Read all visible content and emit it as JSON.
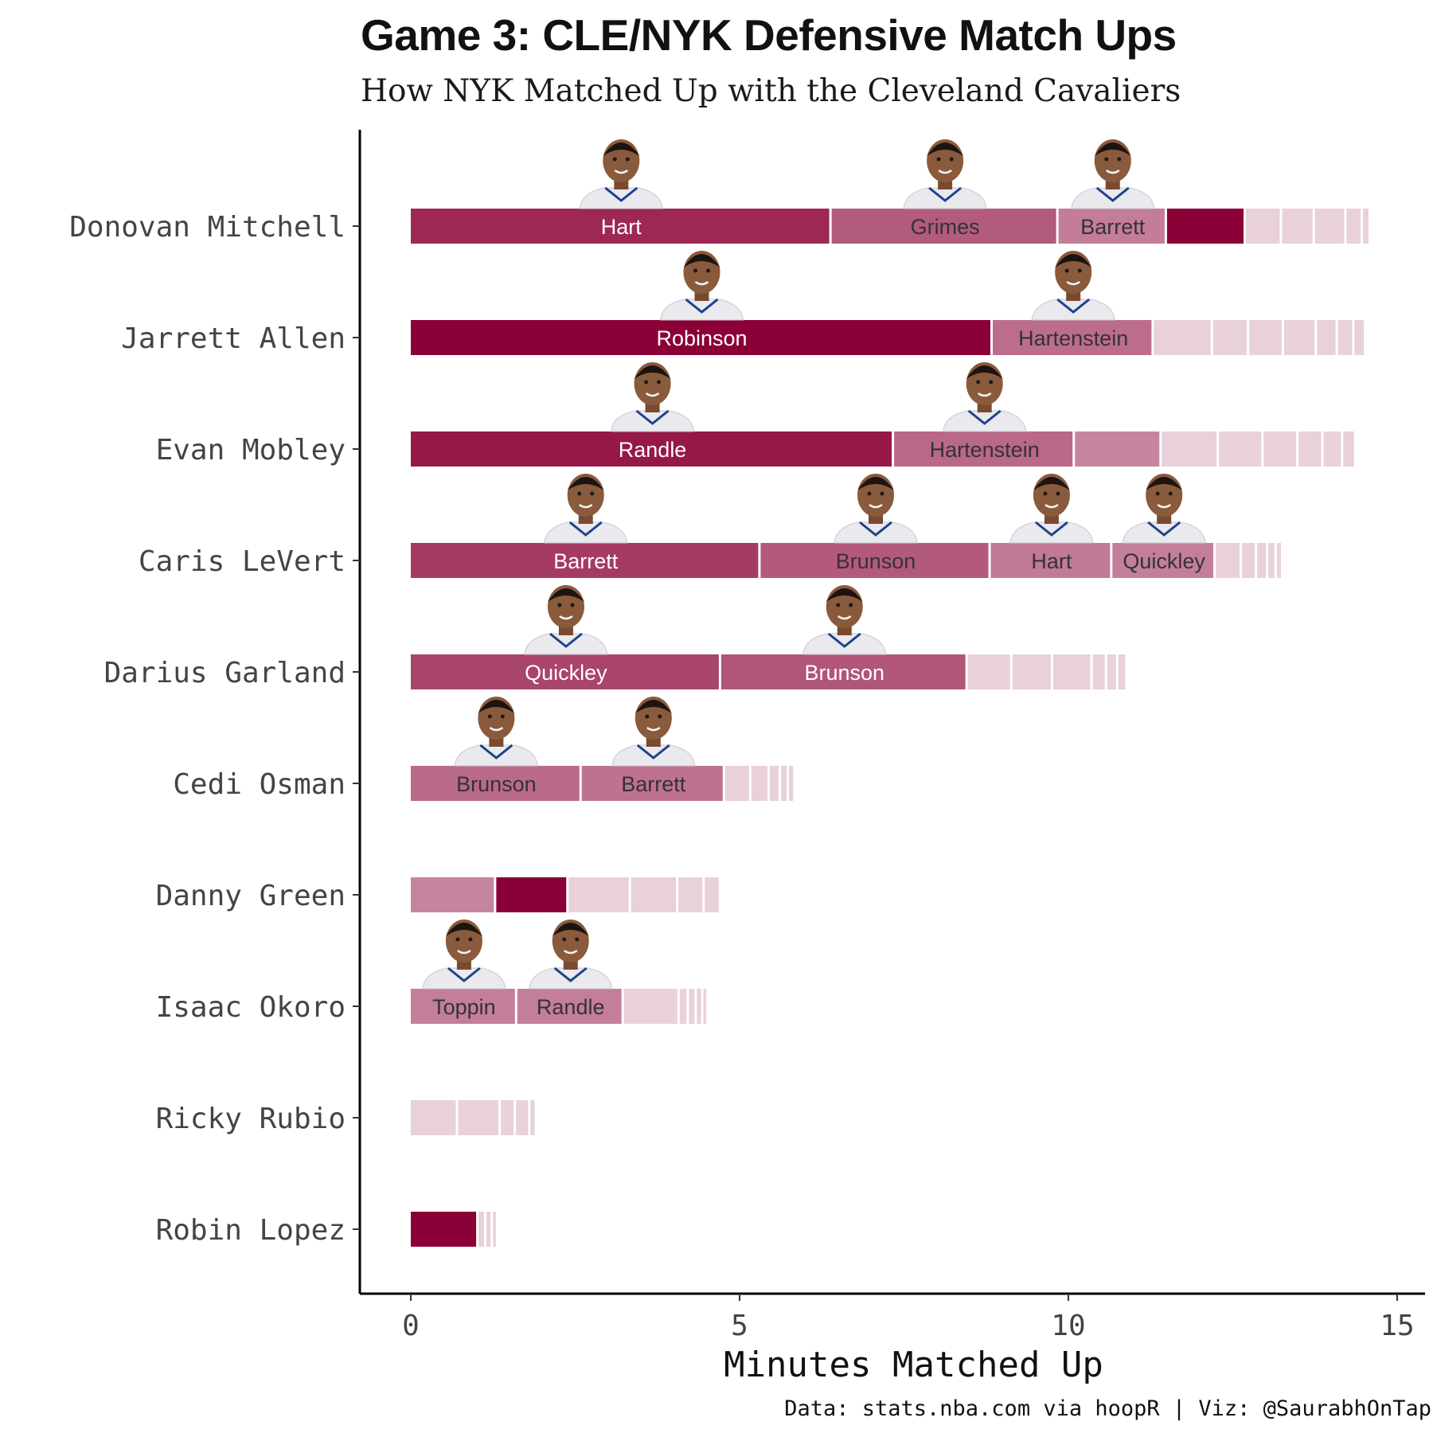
{
  "chart_data": {
    "type": "bar",
    "orientation": "horizontal",
    "stacked": true,
    "title": "Game 3: CLE/NYK Defensive Match Ups",
    "subtitle": "How NYK Matched Up with the Cleveland Cavaliers",
    "xlabel": "Minutes Matched Up",
    "ylabel": "",
    "xlim": [
      0,
      15
    ],
    "xticks": [
      0,
      5,
      10,
      15
    ],
    "caption": "Data: stats.nba.com via hoopR | Viz: @SaurabhOnTap",
    "colors": {
      "dark": "#8b0036",
      "light": "#e8d1da",
      "grid_gap": "#ffffff",
      "axis": "#000000"
    },
    "categories": [
      "Donovan Mitchell",
      "Jarrett Allen",
      "Evan Mobley",
      "Caris LeVert",
      "Darius Garland",
      "Cedi Osman",
      "Danny Green",
      "Isaac Okoro",
      "Ricky Rubio",
      "Robin Lopez"
    ],
    "rows": [
      {
        "offense": "Donovan Mitchell",
        "segments": [
          {
            "defender": "Hart",
            "minutes": 6.4,
            "headshot": "player-headshot"
          },
          {
            "defender": "Grimes",
            "minutes": 3.45,
            "headshot": "player-headshot"
          },
          {
            "defender": "Barrett",
            "minutes": 1.65,
            "headshot": "player-headshot"
          },
          {
            "defender": "",
            "minutes": 1.2
          },
          {
            "defender": "",
            "minutes": 0.55
          },
          {
            "defender": "",
            "minutes": 0.5
          },
          {
            "defender": "",
            "minutes": 0.48
          },
          {
            "defender": "",
            "minutes": 0.25
          },
          {
            "defender": "",
            "minutes": 0.12
          }
        ]
      },
      {
        "offense": "Jarrett Allen",
        "segments": [
          {
            "defender": "Robinson",
            "minutes": 8.85,
            "headshot": "player-headshot"
          },
          {
            "defender": "Hartenstein",
            "minutes": 2.45,
            "headshot": "player-headshot"
          },
          {
            "defender": "",
            "minutes": 0.9
          },
          {
            "defender": "",
            "minutes": 0.55
          },
          {
            "defender": "",
            "minutes": 0.53
          },
          {
            "defender": "",
            "minutes": 0.5
          },
          {
            "defender": "",
            "minutes": 0.32
          },
          {
            "defender": "",
            "minutes": 0.25
          },
          {
            "defender": "",
            "minutes": 0.18
          }
        ]
      },
      {
        "offense": "Evan Mobley",
        "segments": [
          {
            "defender": "Randle",
            "minutes": 7.35,
            "headshot": "player-headshot"
          },
          {
            "defender": "Hartenstein",
            "minutes": 2.75,
            "headshot": "player-headshot"
          },
          {
            "defender": "",
            "minutes": 1.32
          },
          {
            "defender": "",
            "minutes": 0.87
          },
          {
            "defender": "",
            "minutes": 0.68
          },
          {
            "defender": "",
            "minutes": 0.53
          },
          {
            "defender": "",
            "minutes": 0.38
          },
          {
            "defender": "",
            "minutes": 0.3
          },
          {
            "defender": "",
            "minutes": 0.2
          }
        ]
      },
      {
        "offense": "Caris LeVert",
        "segments": [
          {
            "defender": "Barrett",
            "minutes": 5.32,
            "headshot": "player-headshot"
          },
          {
            "defender": "Brunson",
            "minutes": 3.5,
            "headshot": "player-headshot"
          },
          {
            "defender": "Hart",
            "minutes": 1.85,
            "headshot": "player-headshot"
          },
          {
            "defender": "Quickley",
            "minutes": 1.57,
            "headshot": "player-headshot"
          },
          {
            "defender": "",
            "minutes": 0.4
          },
          {
            "defender": "",
            "minutes": 0.23
          },
          {
            "defender": "",
            "minutes": 0.17
          },
          {
            "defender": "",
            "minutes": 0.13
          },
          {
            "defender": "",
            "minutes": 0.1
          }
        ]
      },
      {
        "offense": "Darius Garland",
        "segments": [
          {
            "defender": "Quickley",
            "minutes": 4.72,
            "headshot": "player-headshot"
          },
          {
            "defender": "Brunson",
            "minutes": 3.75,
            "headshot": "player-headshot"
          },
          {
            "defender": "",
            "minutes": 0.68
          },
          {
            "defender": "",
            "minutes": 0.62
          },
          {
            "defender": "",
            "minutes": 0.6
          },
          {
            "defender": "",
            "minutes": 0.22
          },
          {
            "defender": "",
            "minutes": 0.17
          },
          {
            "defender": "",
            "minutes": 0.14
          }
        ]
      },
      {
        "offense": "Cedi Osman",
        "segments": [
          {
            "defender": "Brunson",
            "minutes": 2.6,
            "headshot": "player-headshot"
          },
          {
            "defender": "Barrett",
            "minutes": 2.18,
            "headshot": "player-headshot"
          },
          {
            "defender": "",
            "minutes": 0.4
          },
          {
            "defender": "",
            "minutes": 0.28
          },
          {
            "defender": "",
            "minutes": 0.17
          },
          {
            "defender": "",
            "minutes": 0.12
          },
          {
            "defender": "",
            "minutes": 0.1
          }
        ]
      },
      {
        "offense": "Danny Green",
        "segments": [
          {
            "defender": "",
            "minutes": 1.3
          },
          {
            "defender": "",
            "minutes": 1.1
          },
          {
            "defender": "",
            "minutes": 0.95
          },
          {
            "defender": "",
            "minutes": 0.72
          },
          {
            "defender": "",
            "minutes": 0.4
          },
          {
            "defender": "",
            "minutes": 0.25
          }
        ]
      },
      {
        "offense": "Isaac Okoro",
        "segments": [
          {
            "defender": "Toppin",
            "minutes": 1.62,
            "headshot": "player-headshot"
          },
          {
            "defender": "Randle",
            "minutes": 1.62,
            "headshot": "player-headshot"
          },
          {
            "defender": "",
            "minutes": 0.85
          },
          {
            "defender": "",
            "minutes": 0.14
          },
          {
            "defender": "",
            "minutes": 0.12
          },
          {
            "defender": "",
            "minutes": 0.1
          },
          {
            "defender": "",
            "minutes": 0.08
          }
        ]
      },
      {
        "offense": "Ricky Rubio",
        "segments": [
          {
            "defender": "",
            "minutes": 0.72
          },
          {
            "defender": "",
            "minutes": 0.65
          },
          {
            "defender": "",
            "minutes": 0.23
          },
          {
            "defender": "",
            "minutes": 0.22
          },
          {
            "defender": "",
            "minutes": 0.1
          }
        ]
      },
      {
        "offense": "Robin Lopez",
        "segments": [
          {
            "defender": "",
            "minutes": 1.03
          },
          {
            "defender": "",
            "minutes": 0.12
          },
          {
            "defender": "",
            "minutes": 0.1
          },
          {
            "defender": "",
            "minutes": 0.08
          }
        ]
      }
    ]
  }
}
